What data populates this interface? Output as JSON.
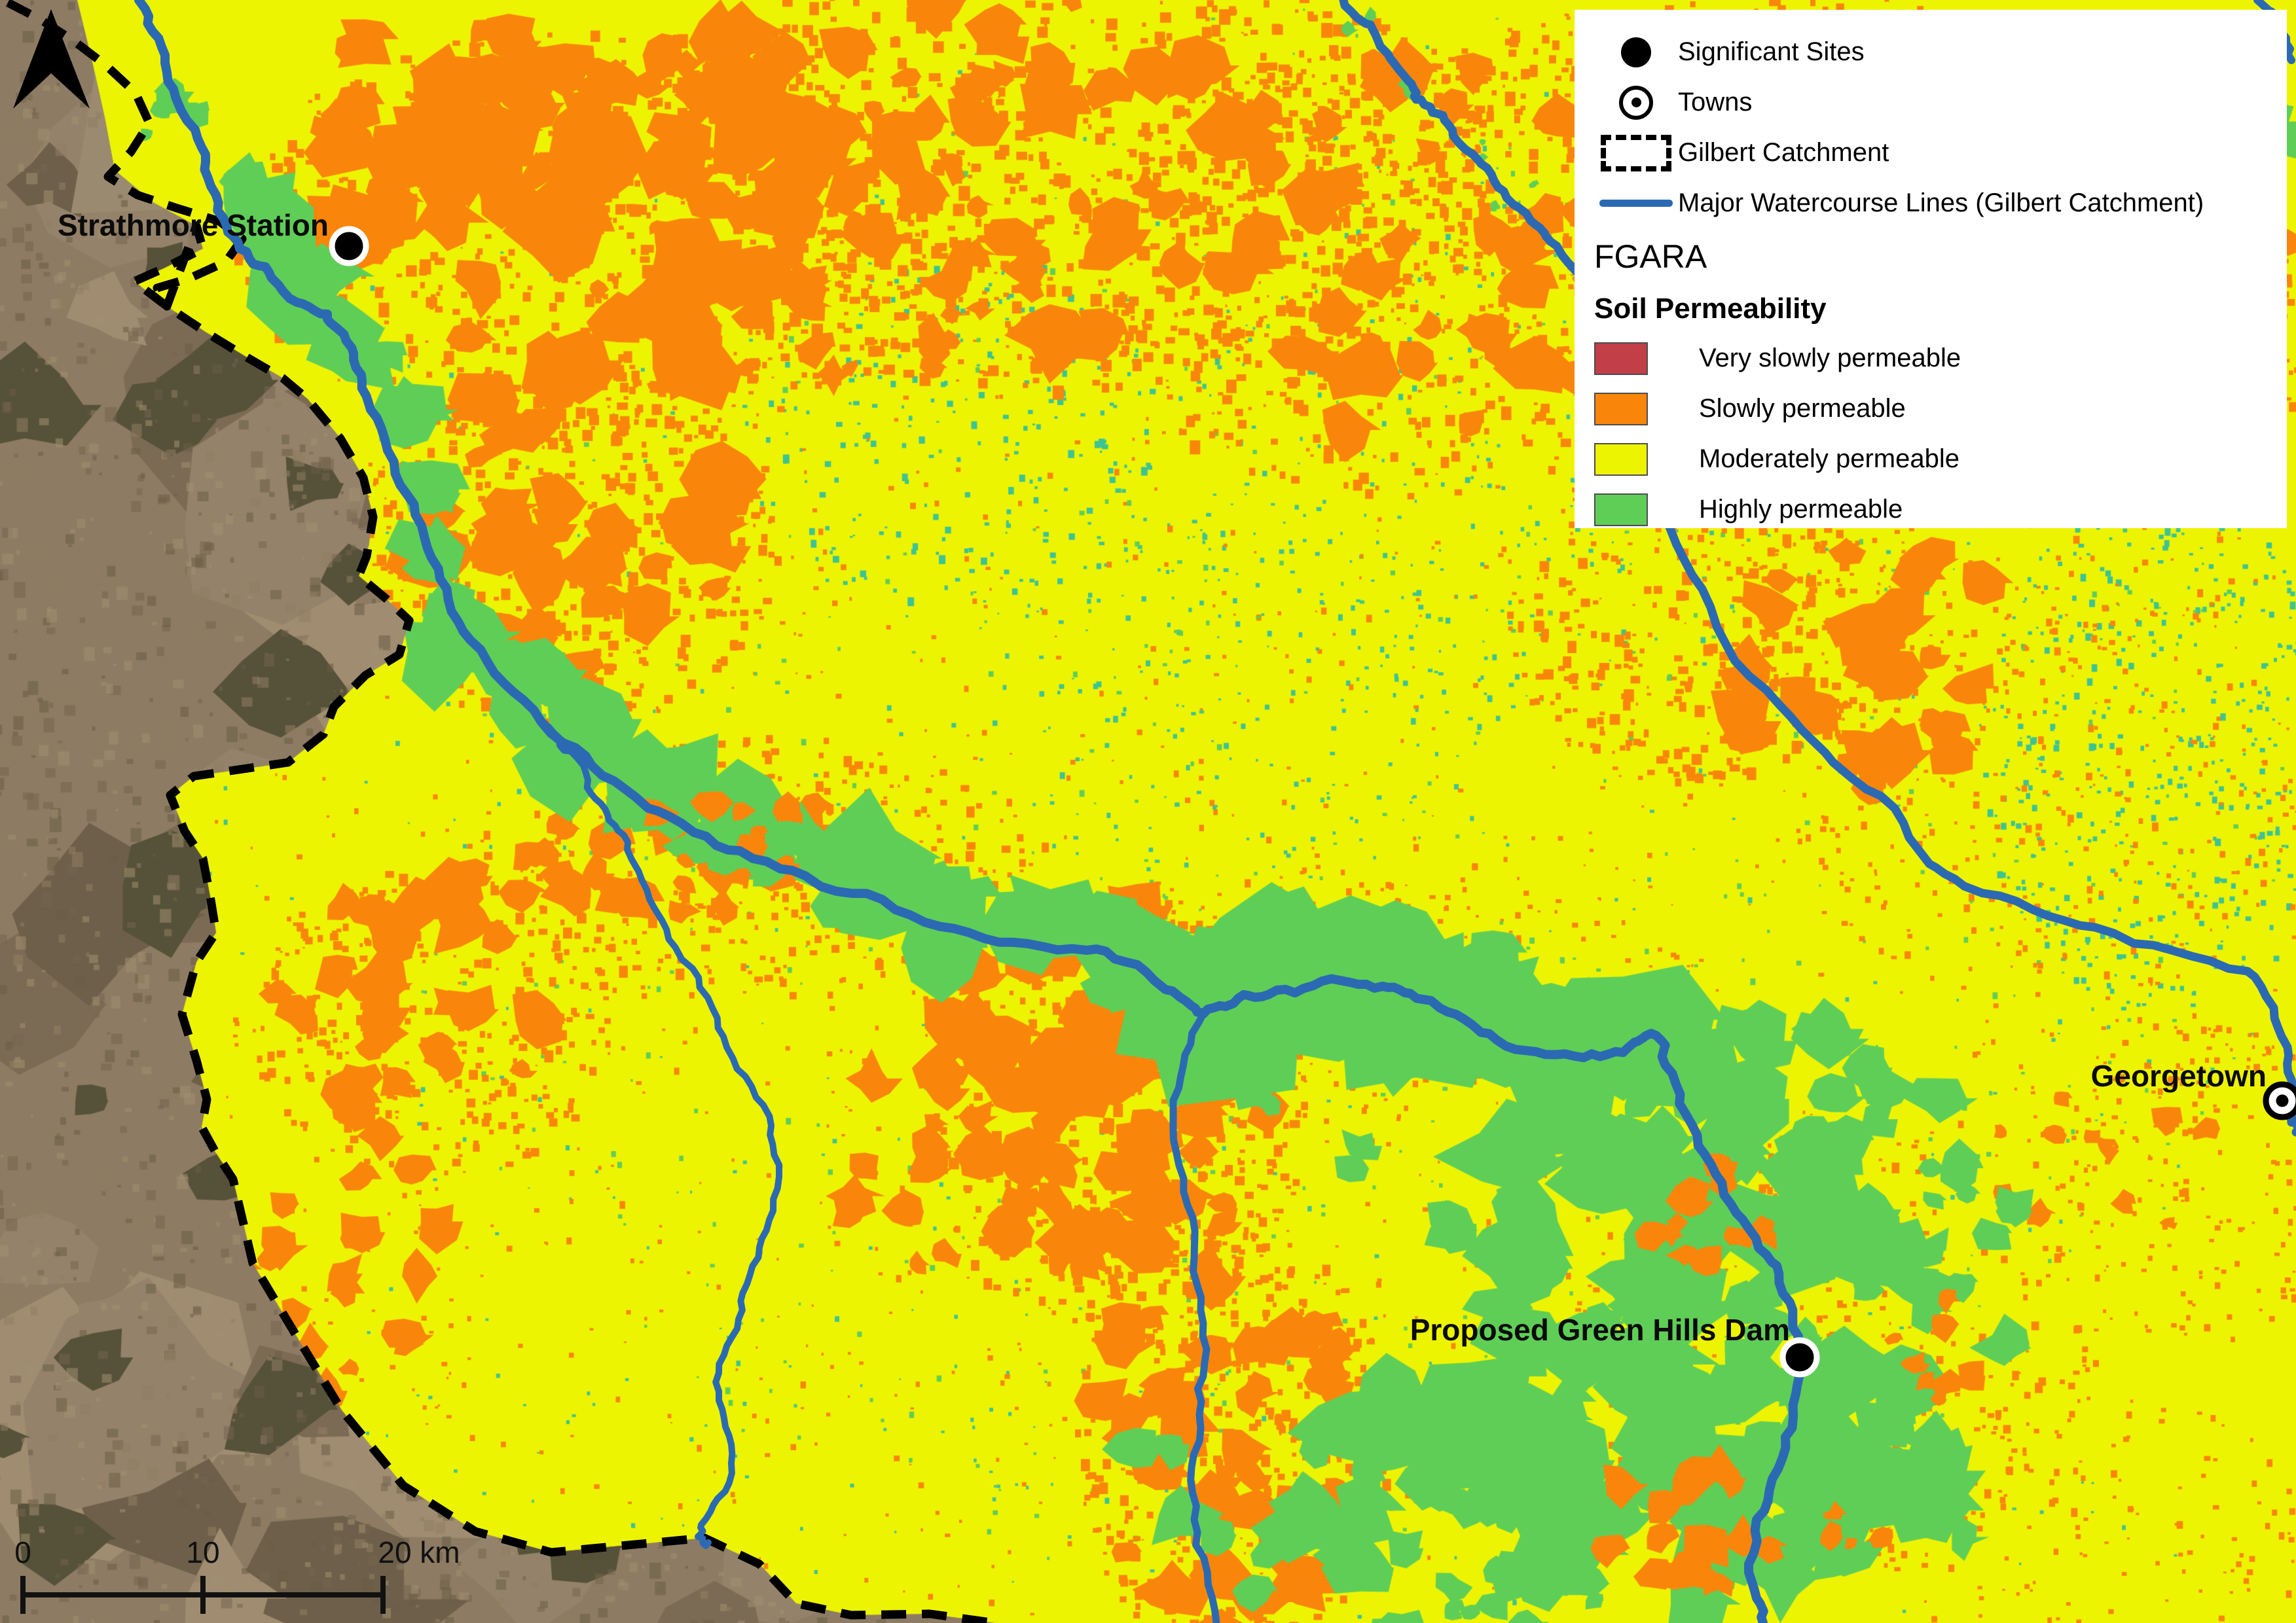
{
  "legend": {
    "items": [
      {
        "label": "Significant Sites"
      },
      {
        "label": "Towns"
      },
      {
        "label": "Gilbert Catchment"
      },
      {
        "label": "Major Watercourse Lines (Gilbert Catchment)"
      }
    ],
    "group_title": "FGARA",
    "subgroup_title": "Soil Permeability",
    "classes": [
      {
        "label": "Very slowly permeable",
        "color": "#c23f48"
      },
      {
        "label": "Slowly permeable",
        "color": "#f9860a"
      },
      {
        "label": "Moderately permeable",
        "color": "#edf402"
      },
      {
        "label": "Highly permeable",
        "color": "#5fce57"
      }
    ]
  },
  "map_labels": {
    "strathmore": "Strathmore Station",
    "georgetown": "Georgetown",
    "green_hills_dam": "Proposed Green Hills Dam"
  },
  "scale_bar": {
    "tick_0": "0",
    "tick_10": "10",
    "tick_20": "20 km"
  },
  "colors": {
    "moderately_permeable": "#edf402",
    "slowly_permeable": "#f9860a",
    "highly_permeable": "#5fce57",
    "very_slowly_permeable": "#c23f48",
    "teal_speckle": "#3cc493",
    "watercourse": "#2b6ab2",
    "boundary": "#000000",
    "satellite_base": "#8d7b63",
    "legend_background": "#ffffff"
  }
}
